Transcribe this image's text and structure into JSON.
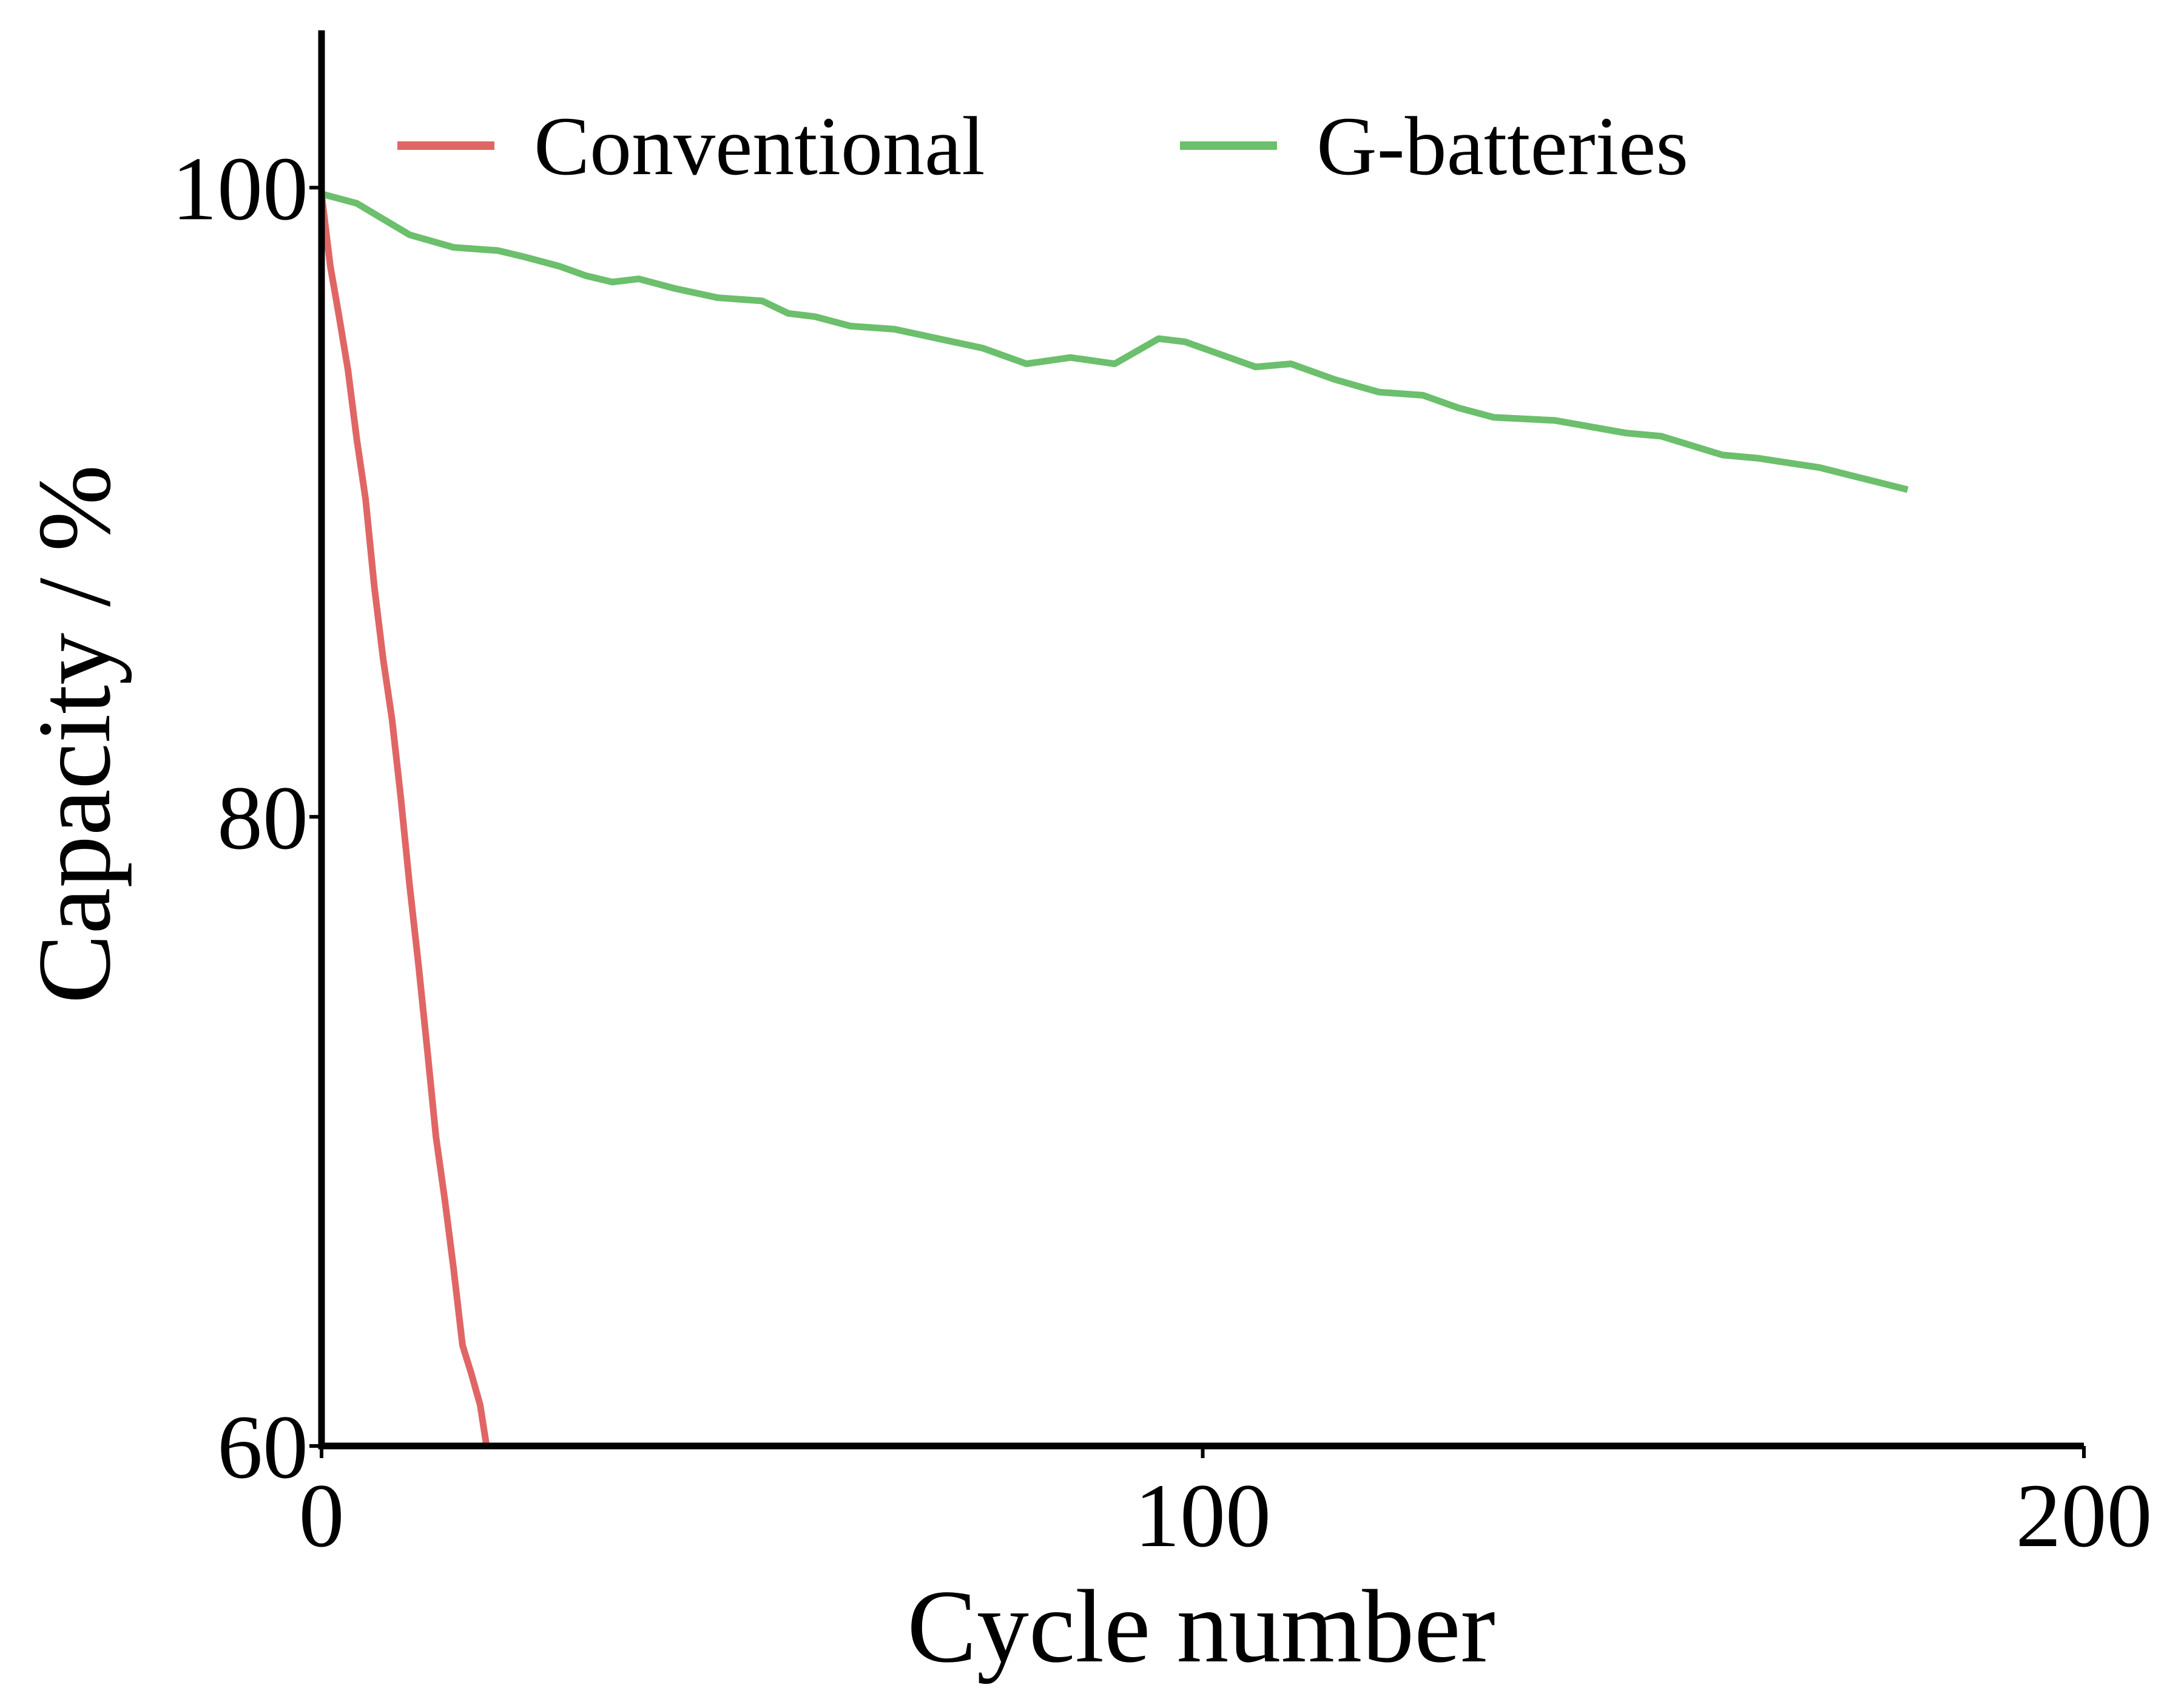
{
  "chart_data": {
    "type": "line",
    "xlabel": "Cycle number",
    "ylabel": "Capacity / %",
    "xlim": [
      0,
      200
    ],
    "ylim": [
      60,
      105
    ],
    "x_ticks": [
      "0",
      "100",
      "200"
    ],
    "y_ticks": [
      "60",
      "80",
      "100"
    ],
    "x_tick_values": [
      0,
      100,
      200
    ],
    "y_tick_values": [
      60,
      80,
      100
    ],
    "grid": false,
    "legend_placement": "top",
    "series": [
      {
        "name": "Conventional",
        "color": "#e06666",
        "x": [
          0,
          1,
          2,
          3,
          4,
          5,
          6,
          7,
          8,
          9,
          10,
          11,
          12,
          13,
          14,
          15,
          16,
          17,
          18,
          19,
          20
        ],
        "y": [
          99.8,
          97.5,
          95.9,
          94.2,
          92.0,
          90.1,
          87.3,
          85.0,
          83.1,
          80.6,
          77.8,
          75.3,
          72.6,
          69.8,
          67.8,
          65.6,
          63.2,
          62.3,
          61.3,
          59.5,
          58.7
        ]
      },
      {
        "name": "G-batteries",
        "color": "#6cbf6c",
        "x": [
          0,
          4,
          7,
          10,
          15,
          20,
          23,
          27,
          30,
          33,
          36,
          40,
          45,
          50,
          53,
          56,
          60,
          65,
          70,
          75,
          80,
          85,
          90,
          95,
          98,
          102,
          106,
          110,
          115,
          120,
          125,
          129,
          133,
          140,
          148,
          152,
          159,
          163,
          170,
          180
        ],
        "y": [
          99.8,
          99.5,
          99.0,
          98.5,
          98.1,
          98.0,
          97.8,
          97.5,
          97.2,
          97.0,
          97.1,
          96.8,
          96.5,
          96.4,
          96.0,
          95.9,
          95.6,
          95.5,
          95.2,
          94.9,
          94.4,
          94.6,
          94.4,
          95.2,
          95.1,
          94.7,
          94.3,
          94.4,
          93.9,
          93.5,
          93.4,
          93.0,
          92.7,
          92.6,
          92.2,
          92.1,
          91.5,
          91.4,
          91.1,
          90.4
        ]
      }
    ]
  }
}
